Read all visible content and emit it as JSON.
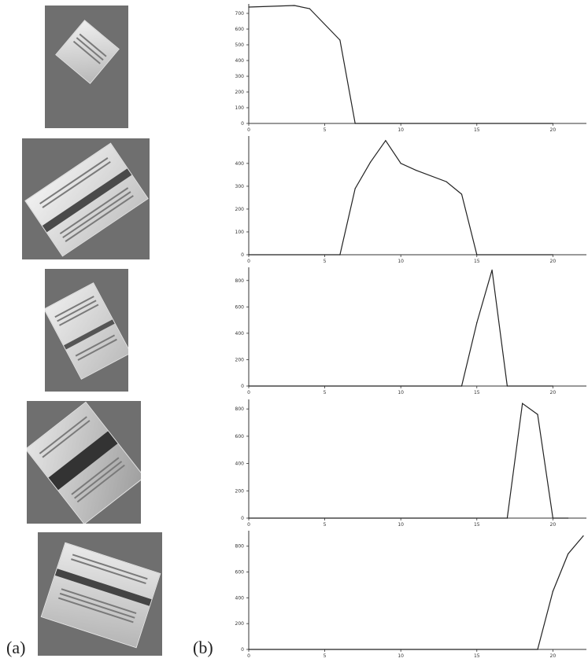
{
  "labels": {
    "panel_a": "(a)",
    "panel_b": "(b)"
  },
  "colors": {
    "photo_bg": "#6f6f6f",
    "box_face": "#d9d9d9",
    "stripe": "#444444",
    "line": "#222222"
  },
  "chart_data": [
    {
      "type": "line",
      "x": [
        0,
        3,
        4,
        6,
        7,
        10,
        15,
        20
      ],
      "y": [
        740,
        750,
        730,
        530,
        0,
        0,
        0,
        0
      ],
      "xlim": [
        0,
        22
      ],
      "ylim": [
        0,
        760
      ],
      "xticks": [
        "0",
        "5",
        "10",
        "15",
        "20"
      ],
      "yticks": [
        "0",
        "100",
        "200",
        "300",
        "400",
        "500",
        "600",
        "700"
      ],
      "ytick_values": [
        0,
        100,
        200,
        300,
        400,
        500,
        600,
        700
      ]
    },
    {
      "type": "line",
      "x": [
        0,
        6,
        7,
        8,
        9,
        10,
        11,
        13,
        14,
        15,
        20
      ],
      "y": [
        0,
        0,
        290,
        405,
        500,
        400,
        370,
        320,
        265,
        0,
        0
      ],
      "xlim": [
        0,
        22
      ],
      "ylim": [
        0,
        520
      ],
      "xticks": [
        "0",
        "5",
        "10",
        "15",
        "20"
      ],
      "yticks": [
        "0",
        "100",
        "200",
        "300",
        "400"
      ],
      "ytick_values": [
        0,
        100,
        200,
        300,
        400
      ]
    },
    {
      "type": "line",
      "x": [
        0,
        14,
        15,
        16,
        17,
        20
      ],
      "y": [
        0,
        0,
        480,
        880,
        0,
        0
      ],
      "xlim": [
        0,
        22
      ],
      "ylim": [
        0,
        900
      ],
      "xticks": [
        "0",
        "5",
        "10",
        "15",
        "20"
      ],
      "yticks": [
        "0",
        "200",
        "400",
        "600",
        "800"
      ],
      "ytick_values": [
        0,
        200,
        400,
        600,
        800
      ]
    },
    {
      "type": "line",
      "x": [
        0,
        17,
        18,
        19,
        20,
        21
      ],
      "y": [
        0,
        0,
        840,
        760,
        0,
        0
      ],
      "xlim": [
        0,
        22
      ],
      "ylim": [
        0,
        870
      ],
      "xticks": [
        "0",
        "5",
        "10",
        "15",
        "20"
      ],
      "yticks": [
        "0",
        "200",
        "400",
        "600",
        "800"
      ],
      "ytick_values": [
        0,
        200,
        400,
        600,
        800
      ]
    },
    {
      "type": "line",
      "x": [
        0,
        19,
        20,
        21,
        22
      ],
      "y": [
        0,
        0,
        450,
        740,
        880
      ],
      "xlim": [
        0,
        22
      ],
      "ylim": [
        0,
        920
      ],
      "xticks": [
        "0",
        "5",
        "10",
        "15",
        "20"
      ],
      "yticks": [
        "0",
        "200",
        "400",
        "600",
        "800"
      ],
      "ytick_values": [
        0,
        200,
        400,
        600,
        800
      ]
    }
  ]
}
